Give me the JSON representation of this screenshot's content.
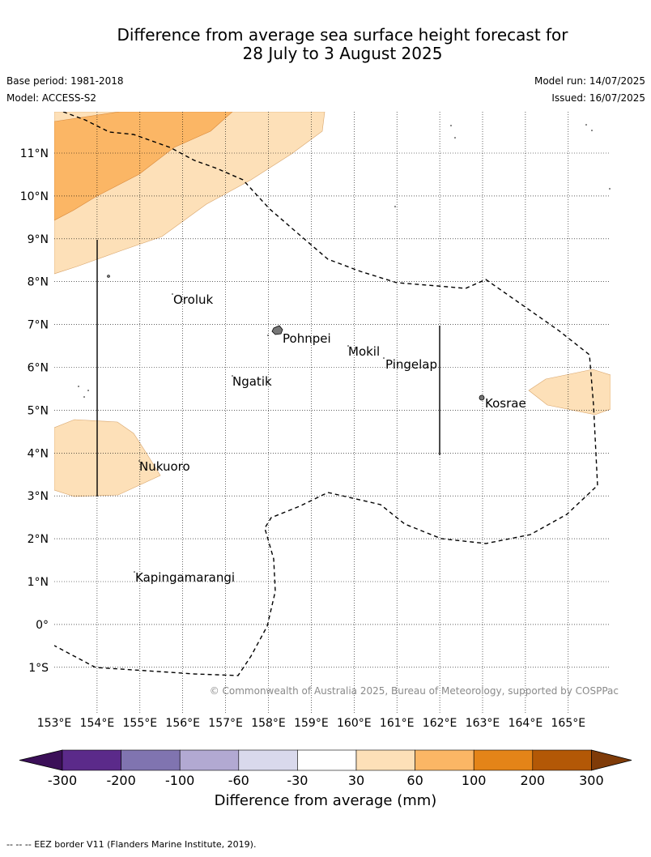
{
  "title_line1": "Difference from average sea surface height forecast for",
  "title_line2": "28 July to 3 August 2025",
  "base_period": "Base period: 1981-2018",
  "model": "Model: ACCESS-S2",
  "model_run": "Model run: 14/07/2025",
  "issued": "Issued: 16/07/2025",
  "copyright": "© Commonwealth of Australia 2025, Bureau of Meteorology, supported by COSPPac",
  "lon_labels": [
    "153°E",
    "154°E",
    "155°E",
    "156°E",
    "157°E",
    "158°E",
    "159°E",
    "160°E",
    "161°E",
    "162°E",
    "163°E",
    "164°E",
    "165°E"
  ],
  "lat_labels": [
    "11°N",
    "10°N",
    "9°N",
    "8°N",
    "7°N",
    "6°N",
    "5°N",
    "4°N",
    "3°N",
    "2°N",
    "1°N",
    "0°",
    "1°S"
  ],
  "places": {
    "oroluk": "Oroluk",
    "pohnpei": "Pohnpei",
    "mokil": "Mokil",
    "pingelap": "Pingelap",
    "ngatik": "Ngatik",
    "kosrae": "Kosrae",
    "nukuoro": "Nukuoro",
    "kapingamarangi": "Kapingamarangi"
  },
  "colorbar": {
    "title": "Difference from average (mm)",
    "ticks": [
      "-300",
      "-200",
      "-100",
      "-60",
      "-30",
      "30",
      "60",
      "100",
      "200",
      "300"
    ],
    "colors": [
      "#3b0f58",
      "#5b2a8a",
      "#8074b0",
      "#b2a9d2",
      "#d9d9ec",
      "#ffffff",
      "#fde0b8",
      "#fbb665",
      "#e48418",
      "#b35806",
      "#7f3b08"
    ]
  },
  "footer": "--  --  -- EEZ border V11 (Flanders Marine Institute, 2019)."
}
